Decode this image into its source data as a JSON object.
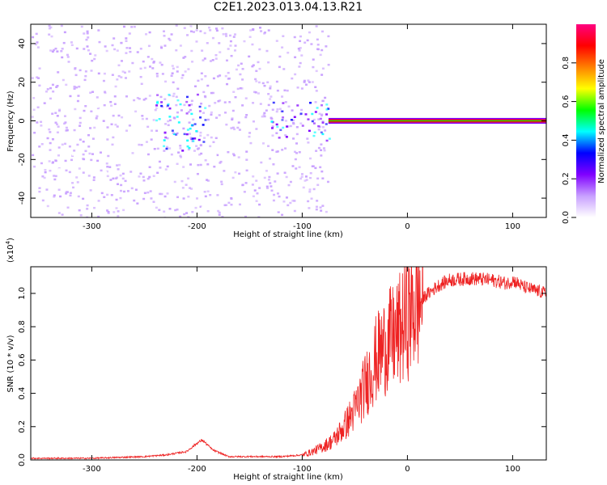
{
  "chart_data": [
    {
      "type": "heatmap",
      "title": "C2E1.2023.013.04.13.R21",
      "xlabel": "Height of straight line (km)",
      "ylabel": "Frequency (Hz)",
      "xlim": [
        -358,
        132
      ],
      "ylim": [
        -50,
        50
      ],
      "x_ticks": [
        -300,
        -200,
        -100,
        0,
        100
      ],
      "x_tick_labels": [
        "-300",
        "-200",
        "-100",
        "0",
        "100"
      ],
      "y_ticks": [
        -40,
        -20,
        0,
        20,
        40
      ],
      "y_tick_labels": [
        "-40",
        "-20",
        "0",
        "20",
        "40"
      ],
      "colorbar": {
        "label": "Normalized spectral amplitude",
        "range": [
          0,
          1
        ],
        "ticks": [
          0.0,
          0.2,
          0.4,
          0.6,
          0.8
        ],
        "tick_labels": [
          "0.0",
          "0.2",
          "0.4",
          "0.6",
          "0.8"
        ],
        "colormap": [
          "#ffffff",
          "#c8a0ff",
          "#8000ff",
          "#0000ff",
          "#00ffff",
          "#00ff00",
          "#ffff00",
          "#ff8000",
          "#ff0000",
          "#ff0080"
        ]
      },
      "features": [
        {
          "x_range": [
            -358,
            -75
          ],
          "freq_range": [
            -50,
            50
          ],
          "amplitude": 0.1,
          "description_shown": "broadband noise"
        },
        {
          "x_range": [
            -240,
            -190
          ],
          "freq_range": [
            -15,
            15
          ],
          "amplitude": 0.3
        },
        {
          "x_range": [
            -130,
            -75
          ],
          "freq_range": [
            -10,
            10
          ],
          "amplitude": 0.3
        },
        {
          "x_range": [
            -75,
            132
          ],
          "freq_range": [
            -1.5,
            1.5
          ],
          "amplitude": 0.9
        }
      ],
      "grid": false
    },
    {
      "type": "line",
      "xlabel": "Height of straight line (km)",
      "ylabel": "SNR (10 * v/v)",
      "y_multiplier_label": "(x10",
      "y_multiplier_exponent": "4",
      "y_multiplier_suffix": ")",
      "xlim": [
        -358,
        132
      ],
      "ylim": [
        0,
        1.16
      ],
      "x_ticks": [
        -300,
        -200,
        -100,
        0,
        100
      ],
      "x_tick_labels": [
        "-300",
        "-200",
        "-100",
        "0",
        "100"
      ],
      "y_ticks": [
        0.0,
        0.2,
        0.4,
        0.6,
        0.8,
        1.0
      ],
      "y_tick_labels": [
        "0.0",
        "0.2",
        "0.4",
        "0.6",
        "0.8",
        "1.0"
      ],
      "series": [
        {
          "color": "#ee2222",
          "x": [
            -358,
            -300,
            -250,
            -230,
            -210,
            -200,
            -195,
            -185,
            -170,
            -150,
            -120,
            -100,
            -90,
            -80,
            -70,
            -60,
            -50,
            -40,
            -30,
            -20,
            -10,
            0,
            5,
            10,
            20,
            30,
            40,
            60,
            80,
            95,
            100,
            110,
            120,
            132
          ],
          "y": [
            0.01,
            0.01,
            0.02,
            0.03,
            0.05,
            0.1,
            0.12,
            0.06,
            0.02,
            0.02,
            0.02,
            0.03,
            0.05,
            0.08,
            0.12,
            0.2,
            0.3,
            0.45,
            0.6,
            0.7,
            0.75,
            0.85,
            0.9,
            0.95,
            1.0,
            1.05,
            1.08,
            1.09,
            1.08,
            1.06,
            1.08,
            1.04,
            1.02,
            1.0
          ]
        }
      ],
      "grid": false
    }
  ]
}
